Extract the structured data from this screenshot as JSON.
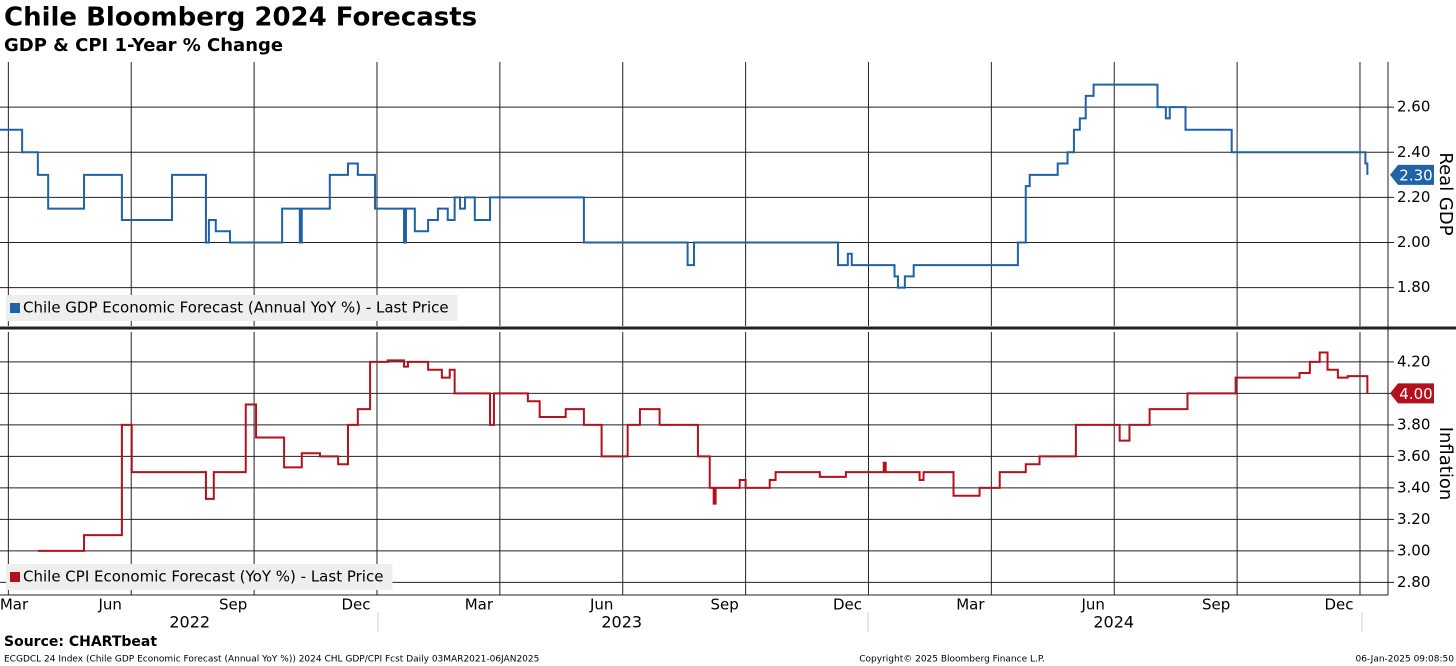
{
  "title": "Chile Bloomberg 2024 Forecasts",
  "subtitle": "GDP & CPI 1-Year % Change",
  "source": "Source: CHARTbeat",
  "footer": {
    "left": "ECGDCL 24 Index (Chile GDP Economic Forecast (Annual YoY %)) 2024 CHL GDP/CPI Fcst  Daily 03MAR2021-06JAN2025",
    "center": "Copyright© 2025 Bloomberg Finance L.P.",
    "right": "06-Jan-2025 09:08:50"
  },
  "chart_data": [
    {
      "type": "line",
      "step": true,
      "axis_label": "Real GDP",
      "xlim": [
        2022.15,
        2024.974
      ],
      "ylim": [
        1.63,
        2.8
      ],
      "yticks": [
        {
          "value": 1.8,
          "label": "1.80"
        },
        {
          "value": 2.0,
          "label": "2.00"
        },
        {
          "value": 2.2,
          "label": "2.20"
        },
        {
          "value": 2.4,
          "label": "2.40"
        },
        {
          "value": 2.6,
          "label": "2.60"
        }
      ],
      "grid": true,
      "series": [
        {
          "name": "Chile GDP Economic Forecast (Annual YoY %) - Last Price",
          "color": "#1f62a5",
          "last_value_label": "2.30",
          "x": [
            2022.15,
            2022.195,
            2022.227,
            2022.248,
            2022.321,
            2022.398,
            2022.5,
            2022.569,
            2022.575,
            2022.589,
            2022.618,
            2022.724,
            2022.76,
            2022.764,
            2022.821,
            2022.858,
            2022.878,
            2022.913,
            2022.972,
            2022.976,
            2022.994,
            2023.021,
            2023.041,
            2023.061,
            2023.075,
            2023.086,
            2023.096,
            2023.116,
            2023.147,
            2023.33,
            2023.338,
            2023.549,
            2023.562,
            2023.855,
            2023.875,
            2023.883,
            2023.97,
            2023.977,
            2023.991,
            2024.009,
            2024.2,
            2024.221,
            2024.237,
            2024.245,
            2024.302,
            2024.322,
            2024.335,
            2024.347,
            2024.359,
            2024.375,
            2024.505,
            2024.522,
            2024.53,
            2024.562,
            2024.656,
            2024.924,
            2024.928,
            2024.932
          ],
          "values": [
            2.5,
            2.4,
            2.3,
            2.15,
            2.3,
            2.1,
            2.3,
            2.0,
            2.1,
            2.05,
            2.0,
            2.15,
            2.0,
            2.15,
            2.3,
            2.35,
            2.3,
            2.15,
            2.0,
            2.15,
            2.05,
            2.1,
            2.15,
            2.1,
            2.2,
            2.15,
            2.2,
            2.1,
            2.2,
            2.2,
            2.0,
            1.9,
            2.0,
            1.9,
            1.95,
            1.9,
            1.85,
            1.8,
            1.85,
            1.9,
            1.9,
            2.0,
            2.25,
            2.3,
            2.35,
            2.4,
            2.5,
            2.55,
            2.65,
            2.7,
            2.6,
            2.55,
            2.6,
            2.5,
            2.4,
            2.4,
            2.35,
            2.3
          ]
        }
      ]
    },
    {
      "type": "line",
      "step": true,
      "axis_label": "Inflation",
      "xlim": [
        2022.15,
        2024.974
      ],
      "ylim": [
        2.72,
        4.39
      ],
      "yticks": [
        {
          "value": 2.8,
          "label": "2.80"
        },
        {
          "value": 3.0,
          "label": "3.00"
        },
        {
          "value": 3.2,
          "label": "3.20"
        },
        {
          "value": 3.4,
          "label": "3.40"
        },
        {
          "value": 3.6,
          "label": "3.60"
        },
        {
          "value": 3.8,
          "label": "3.80"
        },
        {
          "value": 4.0,
          "label": "4.00"
        },
        {
          "value": 4.2,
          "label": "4.20"
        }
      ],
      "xticks": [
        {
          "value": 2022.167,
          "label": "Mar"
        },
        {
          "value": 2022.417,
          "label": "Jun"
        },
        {
          "value": 2022.667,
          "label": "Sep"
        },
        {
          "value": 2022.917,
          "label": "Dec"
        },
        {
          "value": 2023.167,
          "label": "Mar"
        },
        {
          "value": 2023.417,
          "label": "Jun"
        },
        {
          "value": 2023.667,
          "label": "Sep"
        },
        {
          "value": 2023.917,
          "label": "Dec"
        },
        {
          "value": 2024.167,
          "label": "Mar"
        },
        {
          "value": 2024.417,
          "label": "Jun"
        },
        {
          "value": 2024.667,
          "label": "Sep"
        },
        {
          "value": 2024.917,
          "label": "Dec"
        }
      ],
      "x_year_labels": [
        {
          "value": 2022.536,
          "label": "2022"
        },
        {
          "value": 2023.415,
          "label": "2023"
        },
        {
          "value": 2024.416,
          "label": "2024"
        }
      ],
      "grid": true,
      "series": [
        {
          "name": "Chile CPI Economic Forecast (YoY %) - Last Price",
          "color": "#b3121c",
          "last_value_label": "4.00",
          "x": [
            2022.227,
            2022.321,
            2022.398,
            2022.418,
            2022.569,
            2022.585,
            2022.65,
            2022.671,
            2022.728,
            2022.764,
            2022.801,
            2022.838,
            2022.858,
            2022.878,
            2022.903,
            2022.939,
            2022.972,
            2022.98,
            2023.021,
            2023.049,
            2023.065,
            2023.075,
            2023.147,
            2023.155,
            2023.224,
            2023.248,
            2023.301,
            2023.338,
            2023.374,
            2023.427,
            2023.452,
            2023.492,
            2023.57,
            2023.594,
            2023.602,
            2023.606,
            2023.655,
            2023.667,
            2023.716,
            2023.728,
            2023.818,
            2023.871,
            2023.948,
            2023.952,
            2024.021,
            2024.029,
            2024.09,
            2024.143,
            2024.184,
            2024.237,
            2024.265,
            2024.339,
            2024.428,
            2024.448,
            2024.489,
            2024.566,
            2024.664,
            2024.794,
            2024.815,
            2024.835,
            2024.851,
            2024.872,
            2024.892,
            2024.932
          ],
          "values": [
            3.0,
            3.1,
            3.8,
            3.5,
            3.33,
            3.5,
            3.93,
            3.72,
            3.53,
            3.62,
            3.6,
            3.55,
            3.8,
            3.9,
            4.2,
            4.21,
            4.17,
            4.2,
            4.15,
            4.1,
            4.15,
            4.0,
            3.8,
            4.0,
            3.95,
            3.85,
            3.9,
            3.8,
            3.6,
            3.8,
            3.9,
            3.8,
            3.6,
            3.4,
            3.3,
            3.4,
            3.45,
            3.4,
            3.45,
            3.5,
            3.47,
            3.5,
            3.56,
            3.5,
            3.45,
            3.5,
            3.35,
            3.4,
            3.5,
            3.55,
            3.6,
            3.8,
            3.7,
            3.8,
            3.9,
            4.0,
            4.1,
            4.13,
            4.2,
            4.26,
            4.15,
            4.1,
            4.11,
            4.0
          ]
        }
      ]
    }
  ]
}
